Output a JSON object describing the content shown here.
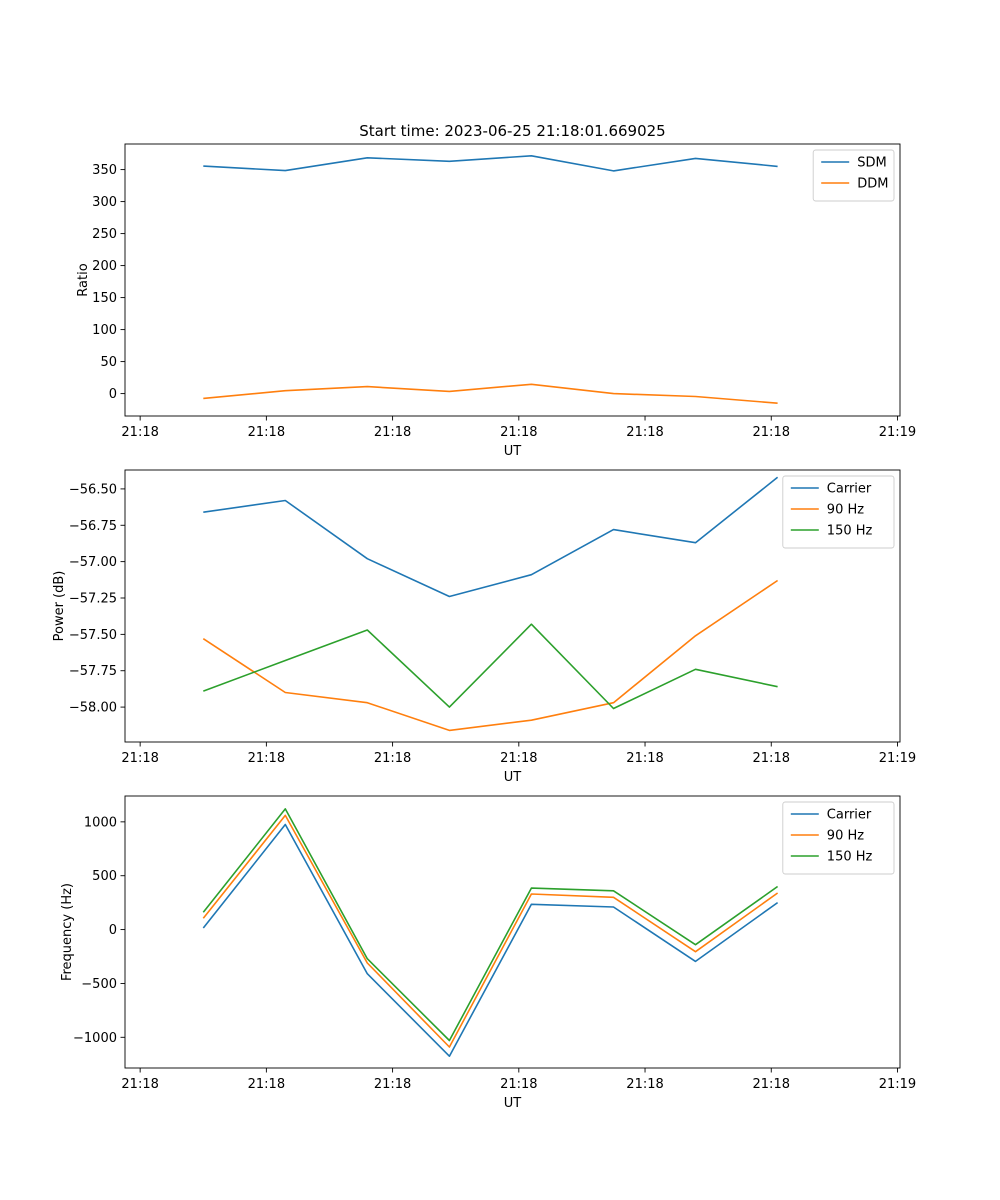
{
  "figure": {
    "title": "Start time: 2023-06-25 21:18:01.669025",
    "background": "#ffffff"
  },
  "colors": {
    "blue": "#1f77b4",
    "orange": "#ff7f0e",
    "green": "#2ca02c"
  },
  "chart_data": [
    {
      "type": "line",
      "title": "Start time: 2023-06-25 21:18:01.669025",
      "xlabel": "UT",
      "ylabel": "Ratio",
      "x_ticks": [
        "21:18",
        "21:18",
        "21:18",
        "21:18",
        "21:18",
        "21:18",
        "21:19"
      ],
      "x_domain": [
        -0.12,
        6.02
      ],
      "x": [
        0.5,
        1.15,
        1.8,
        2.45,
        3.1,
        3.75,
        4.4,
        5.05
      ],
      "ylim": [
        -35,
        390
      ],
      "y_ticks": [
        0,
        50,
        100,
        150,
        200,
        250,
        300,
        350
      ],
      "legend_position": "upper right",
      "grid": false,
      "series": [
        {
          "name": "SDM",
          "color": "#1f77b4",
          "values": [
            355.5,
            348.5,
            368.5,
            363,
            371.5,
            348,
            367.5,
            355
          ]
        },
        {
          "name": "DDM",
          "color": "#ff7f0e",
          "values": [
            -7.5,
            4.5,
            11,
            3.5,
            14.5,
            0,
            -4.5,
            -15
          ]
        }
      ]
    },
    {
      "type": "line",
      "xlabel": "UT",
      "ylabel": "Power (dB)",
      "x_ticks": [
        "21:18",
        "21:18",
        "21:18",
        "21:18",
        "21:18",
        "21:18",
        "21:19"
      ],
      "x_domain": [
        -0.12,
        6.02
      ],
      "x": [
        0.5,
        1.15,
        1.8,
        2.45,
        3.1,
        3.75,
        4.4,
        5.05
      ],
      "ylim": [
        -58.24,
        -56.37
      ],
      "y_ticks": [
        -58.0,
        -57.75,
        -57.5,
        -57.25,
        -57.0,
        -56.75,
        -56.5
      ],
      "y_tick_labels": [
        "−58.00",
        "−57.75",
        "−57.50",
        "−57.25",
        "−57.00",
        "−56.75",
        "−56.50"
      ],
      "legend_position": "upper right",
      "grid": false,
      "series": [
        {
          "name": "Carrier",
          "color": "#1f77b4",
          "values": [
            -56.66,
            -56.58,
            -56.98,
            -57.24,
            -57.09,
            -56.78,
            -56.87,
            -56.42
          ]
        },
        {
          "name": "90 Hz",
          "color": "#ff7f0e",
          "values": [
            -57.53,
            -57.9,
            -57.97,
            -58.16,
            -58.09,
            -57.97,
            -57.51,
            -57.13
          ]
        },
        {
          "name": "150 Hz",
          "color": "#2ca02c",
          "values": [
            -57.89,
            -57.68,
            -57.47,
            -58.0,
            -57.43,
            -58.01,
            -57.74,
            -57.86
          ]
        }
      ]
    },
    {
      "type": "line",
      "xlabel": "UT",
      "ylabel": "Frequency (Hz)",
      "x_ticks": [
        "21:18",
        "21:18",
        "21:18",
        "21:18",
        "21:18",
        "21:18",
        "21:19"
      ],
      "x_domain": [
        -0.12,
        6.02
      ],
      "x": [
        0.5,
        1.15,
        1.8,
        2.45,
        3.1,
        3.75,
        4.4,
        5.05
      ],
      "ylim": [
        -1285,
        1240
      ],
      "y_ticks": [
        -1000,
        -500,
        0,
        500,
        1000
      ],
      "y_tick_labels": [
        "−1000",
        "−500",
        "0",
        "500",
        "1000"
      ],
      "legend_position": "upper right",
      "grid": false,
      "series": [
        {
          "name": "Carrier",
          "color": "#1f77b4",
          "values": [
            15,
            975,
            -410,
            -1175,
            235,
            210,
            -295,
            250
          ]
        },
        {
          "name": "90 Hz",
          "color": "#ff7f0e",
          "values": [
            105,
            1060,
            -310,
            -1090,
            330,
            300,
            -205,
            340
          ]
        },
        {
          "name": "150 Hz",
          "color": "#2ca02c",
          "values": [
            160,
            1120,
            -270,
            -1030,
            385,
            360,
            -140,
            400
          ]
        }
      ]
    }
  ]
}
